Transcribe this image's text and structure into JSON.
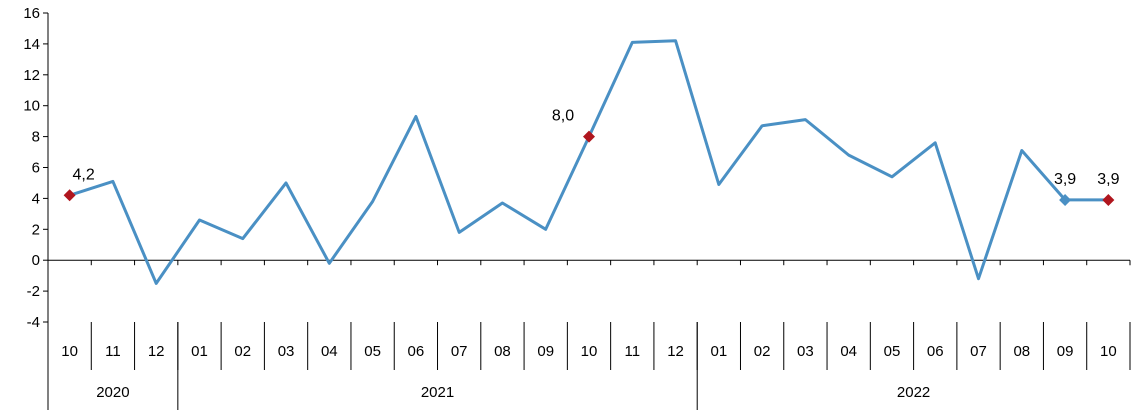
{
  "chart_data": {
    "type": "line",
    "title": "",
    "xlabel": "",
    "ylabel": "",
    "ylim": [
      -4,
      16
    ],
    "yticks": [
      -4,
      -2,
      0,
      2,
      4,
      6,
      8,
      10,
      12,
      14,
      16
    ],
    "categories": [
      "10",
      "11",
      "12",
      "01",
      "02",
      "03",
      "04",
      "05",
      "06",
      "07",
      "08",
      "09",
      "10",
      "11",
      "12",
      "01",
      "02",
      "03",
      "04",
      "05",
      "06",
      "07",
      "08",
      "09",
      "10"
    ],
    "years": [
      {
        "label": "2020",
        "count": 3
      },
      {
        "label": "2021",
        "count": 12
      },
      {
        "label": "2022",
        "count": 10
      }
    ],
    "series": [
      {
        "values": [
          4.2,
          5.1,
          -1.5,
          2.6,
          1.4,
          5.0,
          -0.2,
          3.8,
          9.3,
          1.8,
          3.7,
          2.0,
          8.0,
          14.1,
          14.2,
          4.9,
          8.7,
          9.1,
          6.8,
          5.4,
          7.6,
          -1.2,
          7.1,
          3.9,
          3.9
        ],
        "color": "#4a90c4"
      }
    ],
    "highlights": [
      {
        "index": 0,
        "label": "4,2",
        "color": "#b0161e"
      },
      {
        "index": 12,
        "label": "8,0",
        "color": "#b0161e"
      },
      {
        "index": 23,
        "label": "3,9",
        "color": "#4a90c4"
      },
      {
        "index": 24,
        "label": "3,9",
        "color": "#b0161e"
      }
    ],
    "grid": false,
    "legend": "none"
  }
}
